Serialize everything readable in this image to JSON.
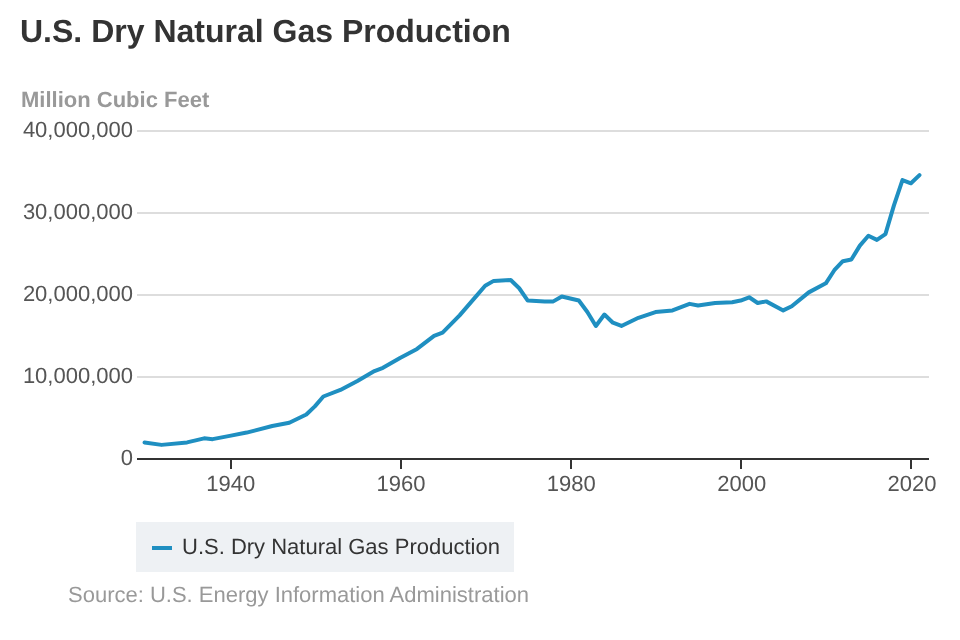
{
  "chart_data": {
    "type": "line",
    "title": "U.S. Dry Natural Gas Production",
    "ylabel": "Million Cubic Feet",
    "x": [
      1930,
      1932,
      1935,
      1937,
      1938,
      1940,
      1942,
      1945,
      1947,
      1949,
      1950,
      1951,
      1953,
      1955,
      1957,
      1958,
      1960,
      1962,
      1964,
      1965,
      1967,
      1969,
      1970,
      1971,
      1973,
      1974,
      1975,
      1977,
      1978,
      1979,
      1981,
      1982,
      1983,
      1984,
      1985,
      1986,
      1988,
      1990,
      1992,
      1994,
      1995,
      1997,
      1999,
      2000,
      2001,
      2002,
      2003,
      2005,
      2006,
      2008,
      2010,
      2011,
      2012,
      2013,
      2014,
      2015,
      2016,
      2017,
      2018,
      2019,
      2020,
      2021
    ],
    "series": [
      {
        "name": "U.S. Dry Natural Gas Production",
        "color": "#1f8fc1",
        "values": [
          1900000.0,
          1600000.0,
          1900000.0,
          2400000.0,
          2300000.0,
          2700000.0,
          3100000.0,
          3900000.0,
          4300000.0,
          5300000.0,
          6300000.0,
          7500000.0,
          8300000.0,
          9400000.0,
          10600000.0,
          11000000.0,
          12200000.0,
          13300000.0,
          14900000.0,
          15300000.0,
          17400000.0,
          19800000.0,
          21000000.0,
          21600000.0,
          21700000.0,
          20700000.0,
          19200000.0,
          19100000.0,
          19100000.0,
          19700000.0,
          19200000.0,
          17800000.0,
          16100000.0,
          17500000.0,
          16500000.0,
          16100000.0,
          17100000.0,
          17800000.0,
          18000000.0,
          18800000.0,
          18600000.0,
          18900000.0,
          19000000.0,
          19200000.0,
          19600000.0,
          18900000.0,
          19100000.0,
          18000000.0,
          18500000.0,
          20200000.0,
          21300000.0,
          22900000.0,
          24000000.0,
          24200000.0,
          25900000.0,
          27100000.0,
          26600000.0,
          27300000.0,
          30800000.0,
          33900000.0,
          33500000.0,
          34500000.0
        ]
      }
    ],
    "xlim": [
      1929,
      2022
    ],
    "xticks": [
      1940,
      1960,
      1980,
      2000,
      2020
    ],
    "ylim": [
      0,
      40000000
    ],
    "yticks": [
      0,
      {
        "value": 10000000,
        "label": "10,000,000"
      },
      {
        "value": 20000000,
        "label": "20,000,000"
      },
      {
        "value": 30000000,
        "label": "30,000,000"
      },
      {
        "value": 40000000,
        "label": "40,000,000"
      }
    ],
    "grid": "y",
    "legend": "bottom",
    "marker": "none",
    "line_style": "solid",
    "annotations": [
      "Source: U.S. Energy Information Administration"
    ]
  }
}
